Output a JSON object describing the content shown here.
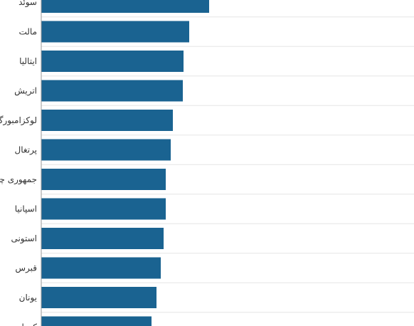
{
  "chart_data": {
    "type": "bar",
    "orientation": "horizontal",
    "categories": [
      "سوئد",
      "مالت",
      "ایتالیا",
      "اتریش",
      "لوکزامبورگ",
      "پرتغال",
      "جمهوری چک",
      "اسپانیا",
      "استونی",
      "قبرس",
      "یونان",
      "کرواسی"
    ],
    "values": [
      236,
      208,
      200,
      199,
      185,
      182,
      175,
      175,
      172,
      168,
      162,
      155
    ],
    "xlim": [
      0,
      525
    ],
    "grid": true,
    "bar_color": "#1a6391"
  }
}
